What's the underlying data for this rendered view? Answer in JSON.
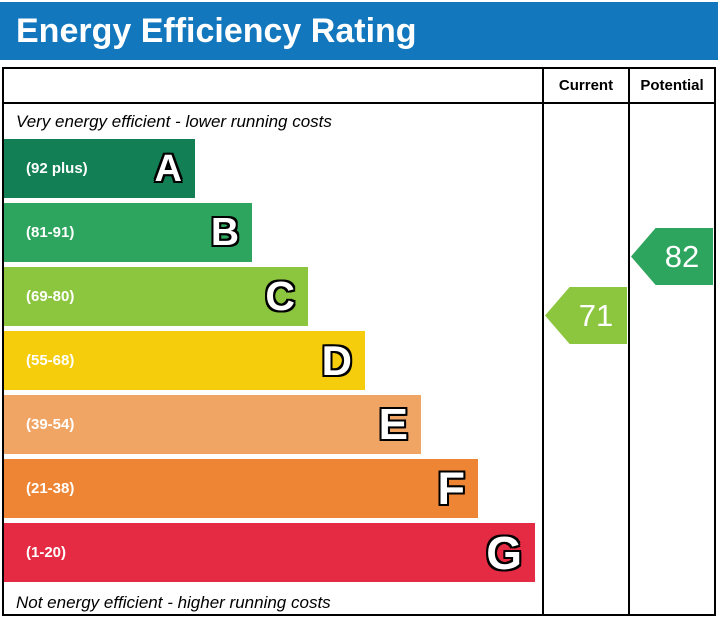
{
  "title": "Energy Efficiency Rating",
  "header": {
    "current_label": "Current",
    "potential_label": "Potential"
  },
  "notes": {
    "top": "Very energy efficient - lower running costs",
    "bottom": "Not energy efficient - higher running costs"
  },
  "colors": {
    "title_bar": "#1277BD",
    "border": "#000000",
    "current_arrow": "#8CC63F",
    "potential_arrow": "#2EA55E"
  },
  "chart_data": {
    "type": "bar",
    "title": "Energy Efficiency Rating",
    "columns": [
      "Current",
      "Potential"
    ],
    "bands": [
      {
        "letter": "A",
        "label": "(92 plus)",
        "min": 92,
        "max": 100,
        "color": "#128054"
      },
      {
        "letter": "B",
        "label": "(81-91)",
        "min": 81,
        "max": 91,
        "color": "#2EA55E"
      },
      {
        "letter": "C",
        "label": "(69-80)",
        "min": 69,
        "max": 80,
        "color": "#8CC63F"
      },
      {
        "letter": "D",
        "label": "(55-68)",
        "min": 55,
        "max": 68,
        "color": "#F5CD0C"
      },
      {
        "letter": "E",
        "label": "(39-54)",
        "min": 39,
        "max": 54,
        "color": "#F1A565"
      },
      {
        "letter": "F",
        "label": "(21-38)",
        "min": 21,
        "max": 38,
        "color": "#EE8535"
      },
      {
        "letter": "G",
        "label": "(1-20)",
        "min": 1,
        "max": 20,
        "color": "#E52B43"
      }
    ],
    "current": {
      "value": 71,
      "band": "C",
      "color": "#8CC63F"
    },
    "potential": {
      "value": 82,
      "band": "B",
      "color": "#2EA55E"
    }
  }
}
